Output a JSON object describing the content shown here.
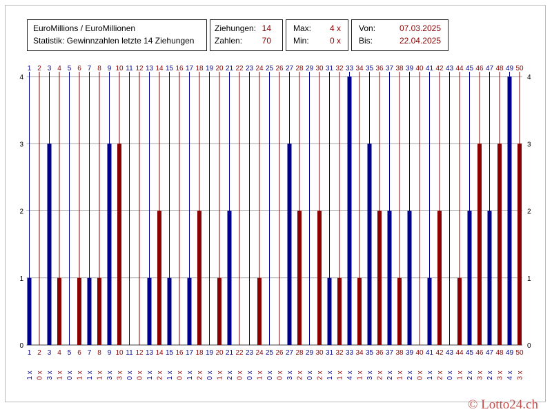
{
  "header": {
    "title_line1": "EuroMillions / EuroMillionen",
    "title_line2": "Statistik: Gewinnzahlen letzte 14 Ziehungen",
    "ziehungen_label": "Ziehungen:",
    "ziehungen_value": "14",
    "zahlen_label": "Zahlen:",
    "zahlen_value": "70",
    "max_label": "Max:",
    "max_value": "4 x",
    "min_label": "Min:",
    "min_value": "0 x",
    "von_label": "Von:",
    "von_value": "07.03.2025",
    "bis_label": "Bis:",
    "bis_value": "22.04.2025"
  },
  "copyright": "© Lotto24.ch",
  "chart_data": {
    "type": "bar",
    "categories": [
      "1",
      "2",
      "3",
      "4",
      "5",
      "6",
      "7",
      "8",
      "9",
      "10",
      "11",
      "12",
      "13",
      "14",
      "15",
      "16",
      "17",
      "18",
      "19",
      "20",
      "21",
      "22",
      "23",
      "24",
      "25",
      "26",
      "27",
      "28",
      "29",
      "30",
      "31",
      "32",
      "33",
      "34",
      "35",
      "36",
      "37",
      "38",
      "39",
      "40",
      "41",
      "42",
      "43",
      "44",
      "45",
      "46",
      "47",
      "48",
      "49",
      "50"
    ],
    "values": [
      1,
      0,
      3,
      1,
      0,
      1,
      1,
      1,
      3,
      3,
      0,
      0,
      1,
      2,
      1,
      0,
      1,
      2,
      0,
      1,
      2,
      0,
      0,
      1,
      0,
      0,
      3,
      2,
      0,
      2,
      1,
      1,
      4,
      1,
      3,
      2,
      2,
      1,
      2,
      0,
      1,
      2,
      0,
      1,
      2,
      3,
      2,
      3,
      4,
      3
    ],
    "count_labels": [
      "1 x",
      "0 x",
      "3 x",
      "1 x",
      "0 x",
      "1 x",
      "1 x",
      "1 x",
      "3 x",
      "3 x",
      "0 x",
      "0 x",
      "1 x",
      "2 x",
      "1 x",
      "0 x",
      "1 x",
      "2 x",
      "0 x",
      "1 x",
      "2 x",
      "0 x",
      "0 x",
      "1 x",
      "0 x",
      "0 x",
      "3 x",
      "2 x",
      "0 x",
      "2 x",
      "1 x",
      "1 x",
      "4 x",
      "1 x",
      "3 x",
      "2 x",
      "2 x",
      "1 x",
      "2 x",
      "0 x",
      "1 x",
      "2 x",
      "0 x",
      "1 x",
      "2 x",
      "3 x",
      "2 x",
      "3 x",
      "4 x",
      "3 x"
    ],
    "ylim": [
      0,
      4
    ],
    "yticks": [
      "0",
      "1",
      "2",
      "3",
      "4"
    ],
    "grid": true,
    "colors": {
      "odd": "#00008b",
      "even": "#8b0000",
      "grid": "#808080"
    }
  }
}
